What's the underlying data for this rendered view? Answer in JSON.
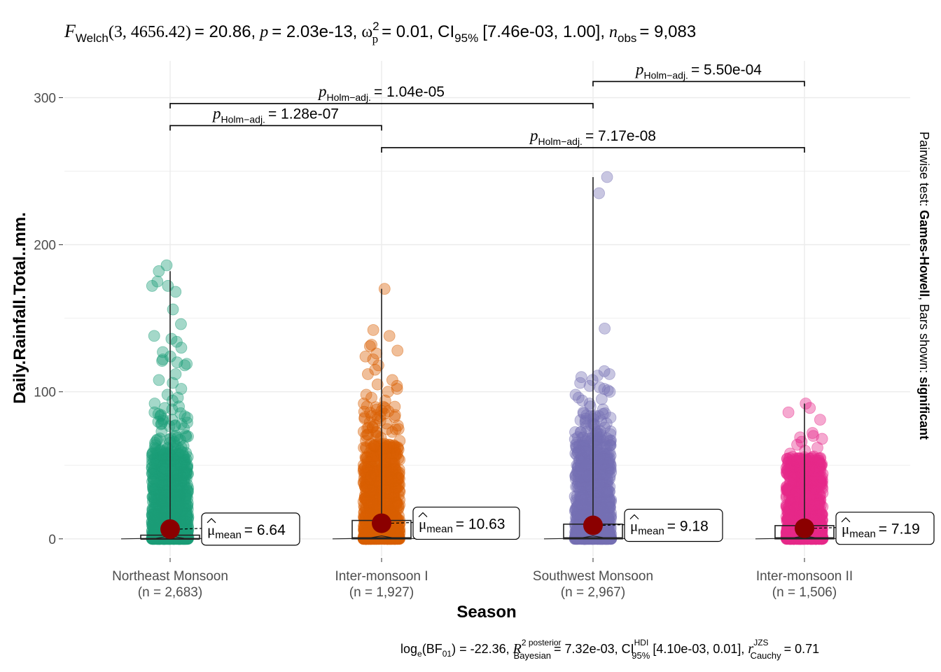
{
  "chart_data": {
    "type": "scatter",
    "title": {
      "f": "F",
      "f_sub": "Welch",
      "df": "(3, 4656.42)",
      "stat": "= 20.86,",
      "p": "p",
      "p_val": "= 2.03e-13,",
      "omega": "ω",
      "omega_sup": "2",
      "omega_sub": "p",
      "omega_val": "= 0.01,",
      "ci": "CI",
      "ci_sub": "95%",
      "ci_val": "[7.46e-03, 1.00],",
      "n": "n",
      "n_sub": "obs",
      "n_val": "= 9,083"
    },
    "subtitle": {
      "log": "log",
      "log_sub": "e",
      "bf": "(BF",
      "bf_sub": "01",
      "bf_val": ") = -22.36,",
      "r": "R",
      "r_sup": "2 posterior",
      "r_sub": "Bayesian",
      "r_val": "= 7.32e-03,",
      "ci": "CI",
      "ci_sup": "HDI",
      "ci_sub": "95%",
      "ci_val": "[4.10e-03, 0.01],",
      "rc": "r",
      "rc_sup": "JZS",
      "rc_sub": "Cauchy",
      "rc_val": "= 0.71"
    },
    "xlabel": "Season",
    "ylabel": "Daily.Rainfall.Total..mm.",
    "right_caption": {
      "prefix": "Pairwise test: ",
      "test": "Games-Howell",
      "middle": ", Bars shown: ",
      "shown": "significant"
    },
    "ylim": [
      -12,
      325
    ],
    "yticks": [
      0,
      100,
      200,
      300
    ],
    "grid": true,
    "mean_color": "#8B0000",
    "categories": [
      "Northeast Monsoon",
      "Inter-monsoon I",
      "Southwest Monsoon",
      "Inter-monsoon II"
    ],
    "n_labels": [
      "(n = 2,683)",
      "(n = 1,927)",
      "(n = 2,967)",
      "(n = 1,506)"
    ],
    "colors": [
      "#1B9E77",
      "#D95F02",
      "#7570B3",
      "#E7298A"
    ],
    "means": [
      6.64,
      10.63,
      9.18,
      7.19
    ],
    "mean_labels": [
      "= 6.64",
      "= 10.63",
      "= 9.18",
      "= 7.19"
    ],
    "mean_symbol": "μ",
    "mean_sub": "mean",
    "boxes": [
      {
        "q1": 0,
        "median": 0,
        "q3": 2.5,
        "whisker_high": 182
      },
      {
        "q1": 0,
        "median": 0.5,
        "q3": 12.5,
        "whisker_high": 170
      },
      {
        "q1": 0,
        "median": 0.5,
        "q3": 10,
        "whisker_high": 246
      },
      {
        "q1": 0,
        "median": 0.5,
        "q3": 9,
        "whisker_high": 92
      }
    ],
    "outliers": [
      [
        186,
        182,
        175,
        172,
        172,
        168,
        156,
        146,
        138,
        136,
        134,
        130,
        127,
        124,
        122,
        121,
        120,
        119,
        118,
        112,
        108,
        106,
        102,
        98,
        96,
        94,
        92,
        90,
        89,
        88,
        86
      ],
      [
        170,
        142,
        138,
        132,
        131,
        128,
        126,
        124,
        122,
        118,
        115,
        112,
        108,
        105,
        104,
        102,
        100,
        98,
        96,
        94,
        92,
        90
      ],
      [
        246,
        235,
        143,
        114,
        112,
        111,
        110,
        108,
        106,
        104,
        103,
        102,
        101,
        100,
        98,
        96,
        95,
        94,
        92,
        90,
        88,
        86
      ],
      [
        92,
        89,
        86,
        81,
        72,
        70,
        69,
        68,
        66,
        64,
        62,
        60,
        58,
        56
      ]
    ],
    "pairwise": [
      {
        "from": 0,
        "to": 1,
        "y": 281,
        "label": "= 1.28e-07"
      },
      {
        "from": 0,
        "to": 2,
        "y": 296,
        "label": "= 1.04e-05"
      },
      {
        "from": 1,
        "to": 3,
        "y": 266,
        "label": "= 7.17e-08"
      },
      {
        "from": 2,
        "to": 3,
        "y": 311,
        "label": "= 5.50e-04"
      }
    ],
    "pairwise_p": "p",
    "pairwise_sub": "Holm−adj."
  }
}
